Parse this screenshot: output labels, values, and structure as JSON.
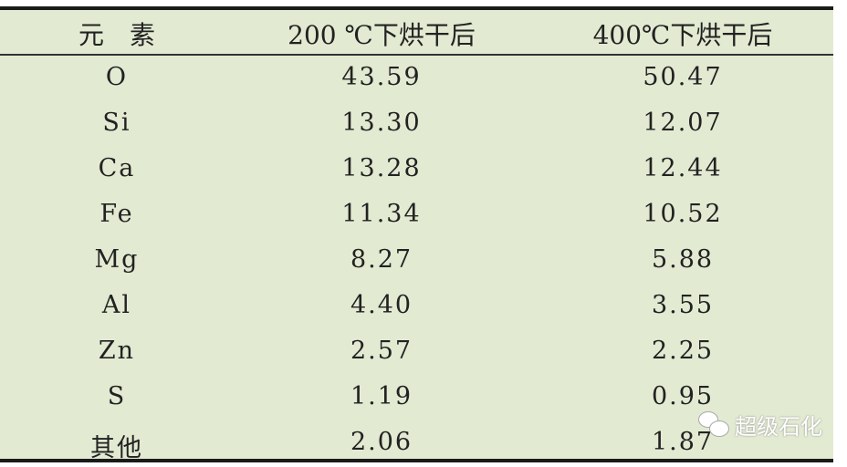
{
  "table": {
    "headers": [
      "元　素",
      "200 ℃下烘干后",
      "400℃下烘干后"
    ],
    "rows": [
      {
        "element": "O",
        "t200": "43.59",
        "t400": "50.47"
      },
      {
        "element": "Si",
        "t200": "13.30",
        "t400": "12.07"
      },
      {
        "element": "Ca",
        "t200": "13.28",
        "t400": "12.44"
      },
      {
        "element": "Fe",
        "t200": "11.34",
        "t400": "10.52"
      },
      {
        "element": "Mg",
        "t200": "8.27",
        "t400": "5.88"
      },
      {
        "element": "Al",
        "t200": "4.40",
        "t400": "3.55"
      },
      {
        "element": "Zn",
        "t200": "2.57",
        "t400": "2.25"
      },
      {
        "element": "S",
        "t200": "1.19",
        "t400": "0.95"
      },
      {
        "element": "其他",
        "t200": "2.06",
        "t400": "1.87"
      }
    ]
  },
  "watermark": {
    "text": "超级石化",
    "icon": "wechat-icon"
  },
  "colors": {
    "background": "#e2ead2",
    "rule": "#1a1a1a"
  }
}
